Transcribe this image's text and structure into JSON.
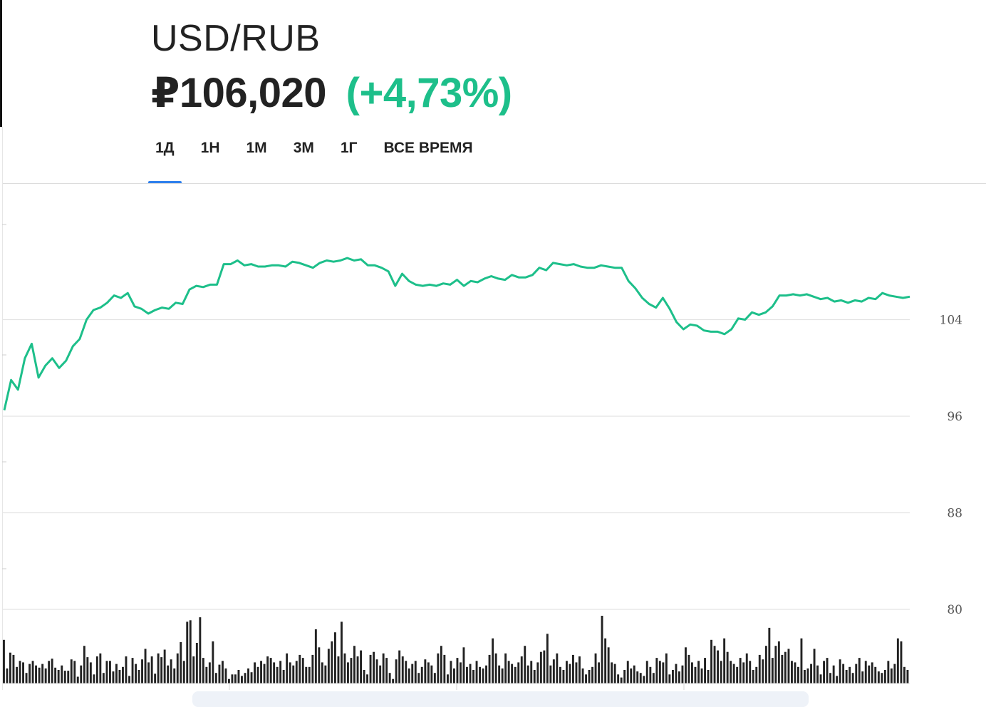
{
  "header": {
    "pair": "USD/RUB",
    "price": "₽106,020",
    "change": "(+4,73%)"
  },
  "tabs": [
    {
      "label": "1Д",
      "active": true
    },
    {
      "label": "1Н",
      "active": false
    },
    {
      "label": "1М",
      "active": false
    },
    {
      "label": "3М",
      "active": false
    },
    {
      "label": "1Г",
      "active": false
    },
    {
      "label": "ВСЕ ВРЕМЯ",
      "active": false
    }
  ],
  "colors": {
    "line": "#1dbf8a",
    "accent": "#2f80ed",
    "volume": "#222222",
    "grid": "#e3e3e3"
  },
  "chart_data": {
    "type": "line",
    "yticks": [
      "104",
      "96",
      "88",
      "80"
    ],
    "ylim": [
      80,
      112
    ],
    "grid": true,
    "series": [
      {
        "points": [
          [
            0,
            96.5
          ],
          [
            1,
            99.0
          ],
          [
            2,
            98.2
          ],
          [
            3,
            100.8
          ],
          [
            4,
            102.0
          ],
          [
            5,
            99.2
          ],
          [
            6,
            100.2
          ],
          [
            7,
            100.8
          ],
          [
            8,
            100.0
          ],
          [
            9,
            100.6
          ],
          [
            10,
            101.8
          ],
          [
            11,
            102.4
          ],
          [
            12,
            104.0
          ],
          [
            13,
            104.8
          ],
          [
            14,
            105.0
          ],
          [
            15,
            105.4
          ],
          [
            16,
            106.0
          ],
          [
            17,
            105.8
          ],
          [
            18,
            106.2
          ],
          [
            19,
            105.1
          ],
          [
            20,
            104.9
          ],
          [
            21,
            104.5
          ],
          [
            22,
            104.8
          ],
          [
            23,
            105.0
          ],
          [
            24,
            104.9
          ],
          [
            25,
            105.4
          ],
          [
            26,
            105.3
          ],
          [
            27,
            106.5
          ],
          [
            28,
            106.8
          ],
          [
            29,
            106.7
          ],
          [
            30,
            106.9
          ],
          [
            31,
            106.9
          ],
          [
            32,
            108.6
          ],
          [
            33,
            108.6
          ],
          [
            34,
            108.9
          ],
          [
            35,
            108.5
          ],
          [
            36,
            108.6
          ],
          [
            37,
            108.4
          ],
          [
            38,
            108.4
          ],
          [
            39,
            108.5
          ],
          [
            40,
            108.5
          ],
          [
            41,
            108.4
          ],
          [
            42,
            108.8
          ],
          [
            43,
            108.7
          ],
          [
            44,
            108.5
          ],
          [
            45,
            108.3
          ],
          [
            46,
            108.7
          ],
          [
            47,
            108.9
          ],
          [
            48,
            108.8
          ],
          [
            49,
            108.9
          ],
          [
            50,
            109.1
          ],
          [
            51,
            108.9
          ],
          [
            52,
            109.0
          ],
          [
            53,
            108.5
          ],
          [
            54,
            108.5
          ],
          [
            55,
            108.3
          ],
          [
            56,
            108.0
          ],
          [
            57,
            106.8
          ],
          [
            58,
            107.8
          ],
          [
            59,
            107.2
          ],
          [
            60,
            106.9
          ],
          [
            61,
            106.8
          ],
          [
            62,
            106.9
          ],
          [
            63,
            106.8
          ],
          [
            64,
            107.0
          ],
          [
            65,
            106.9
          ],
          [
            66,
            107.3
          ],
          [
            67,
            106.8
          ],
          [
            68,
            107.2
          ],
          [
            69,
            107.1
          ],
          [
            70,
            107.4
          ],
          [
            71,
            107.6
          ],
          [
            72,
            107.4
          ],
          [
            73,
            107.3
          ],
          [
            74,
            107.7
          ],
          [
            75,
            107.5
          ],
          [
            76,
            107.5
          ],
          [
            77,
            107.7
          ],
          [
            78,
            108.3
          ],
          [
            79,
            108.1
          ],
          [
            80,
            108.7
          ],
          [
            81,
            108.6
          ],
          [
            82,
            108.5
          ],
          [
            83,
            108.6
          ],
          [
            84,
            108.4
          ],
          [
            85,
            108.3
          ],
          [
            86,
            108.3
          ],
          [
            87,
            108.5
          ],
          [
            88,
            108.4
          ],
          [
            89,
            108.3
          ],
          [
            90,
            108.3
          ],
          [
            91,
            107.2
          ],
          [
            92,
            106.6
          ],
          [
            93,
            105.8
          ],
          [
            94,
            105.3
          ],
          [
            95,
            105.0
          ],
          [
            96,
            105.8
          ],
          [
            97,
            104.9
          ],
          [
            98,
            103.8
          ],
          [
            99,
            103.2
          ],
          [
            100,
            103.6
          ],
          [
            101,
            103.5
          ],
          [
            102,
            103.1
          ],
          [
            103,
            103.0
          ],
          [
            104,
            103.0
          ],
          [
            105,
            102.8
          ],
          [
            106,
            103.2
          ],
          [
            107,
            104.1
          ],
          [
            108,
            104.0
          ],
          [
            109,
            104.6
          ],
          [
            110,
            104.4
          ],
          [
            111,
            104.6
          ],
          [
            112,
            105.1
          ],
          [
            113,
            106.0
          ],
          [
            114,
            106.0
          ],
          [
            115,
            106.1
          ],
          [
            116,
            106.0
          ],
          [
            117,
            106.1
          ],
          [
            118,
            105.9
          ],
          [
            119,
            105.7
          ],
          [
            120,
            105.8
          ],
          [
            121,
            105.5
          ],
          [
            122,
            105.6
          ],
          [
            123,
            105.4
          ],
          [
            124,
            105.6
          ],
          [
            125,
            105.5
          ],
          [
            126,
            105.8
          ],
          [
            127,
            105.7
          ],
          [
            128,
            106.2
          ],
          [
            129,
            106.0
          ],
          [
            130,
            105.9
          ],
          [
            131,
            105.8
          ],
          [
            132,
            105.9
          ]
        ]
      }
    ],
    "volume": [
      58,
      20,
      41,
      38,
      22,
      30,
      28,
      14,
      26,
      30,
      24,
      21,
      26,
      20,
      30,
      33,
      21,
      18,
      24,
      17,
      17,
      32,
      30,
      9,
      24,
      50,
      35,
      28,
      12,
      36,
      40,
      14,
      30,
      30,
      16,
      26,
      18,
      22,
      36,
      10,
      34,
      26,
      18,
      32,
      46,
      28,
      36,
      13,
      40,
      35,
      45,
      24,
      32,
      20,
      40,
      55,
      30,
      82,
      84,
      36,
      54,
      88,
      34,
      22,
      28,
      56,
      14,
      25,
      30,
      20,
      6,
      12,
      12,
      18,
      10,
      14,
      20,
      15,
      28,
      22,
      30,
      26,
      36,
      34,
      28,
      22,
      30,
      18,
      40,
      28,
      24,
      30,
      38,
      34,
      22,
      22,
      38,
      72,
      48,
      28,
      24,
      46,
      56,
      68,
      36,
      82,
      40,
      28,
      34,
      50,
      36,
      44,
      18,
      12,
      38,
      42,
      32,
      24,
      40,
      34,
      14,
      6,
      32,
      44,
      36,
      30,
      20,
      26,
      30,
      14,
      22,
      32,
      28,
      24,
      14,
      40,
      50,
      38,
      12,
      30,
      20,
      34,
      28,
      48,
      22,
      26,
      18,
      30,
      22,
      20,
      24,
      38,
      60,
      40,
      24,
      20,
      40,
      30,
      26,
      22,
      28,
      36,
      50,
      24,
      30,
      18,
      28,
      42,
      44,
      66,
      24,
      32,
      40,
      22,
      18,
      30,
      26,
      38,
      28,
      36,
      20,
      12,
      18,
      22,
      40,
      28,
      90,
      60,
      48,
      28,
      26,
      12,
      8,
      18,
      30,
      20,
      24,
      16,
      14,
      10,
      30,
      22,
      14,
      34,
      30,
      28,
      40,
      12,
      18,
      26,
      16,
      24,
      48,
      38,
      28,
      22,
      30,
      20,
      34,
      18,
      58,
      50,
      44,
      30,
      60,
      42,
      30,
      26,
      22,
      34,
      28,
      40,
      30,
      18,
      22,
      38,
      32,
      50,
      74,
      34,
      50,
      56,
      38,
      42,
      46,
      30,
      28,
      22,
      60,
      18,
      20,
      26,
      46,
      24,
      12,
      30,
      34,
      14,
      24,
      10,
      32,
      26,
      18,
      22,
      14,
      26,
      34,
      16,
      30,
      24,
      28,
      22,
      16,
      14,
      18,
      30,
      20,
      26,
      60,
      56,
      22,
      18
    ]
  }
}
